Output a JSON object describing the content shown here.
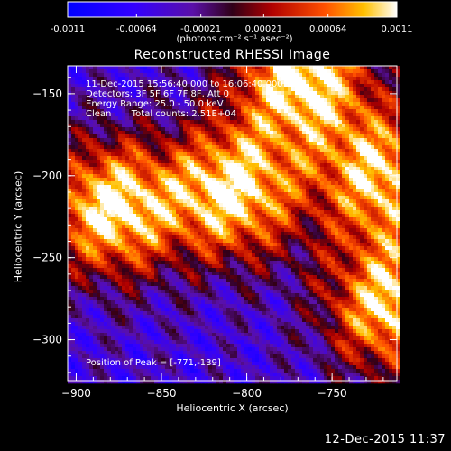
{
  "chart_data": {
    "type": "heatmap",
    "title": "Reconstructed RHESSI Image",
    "xlabel": "Heliocentric X (arcsec)",
    "ylabel": "Heliocentric Y (arcsec)",
    "xlim": [
      -905,
      -712
    ],
    "ylim": [
      -325,
      -133
    ],
    "x_ticks": [
      -900,
      -850,
      -800,
      -750
    ],
    "y_ticks": [
      -150,
      -200,
      -250,
      -300
    ],
    "colorbar": {
      "vmin": -0.0011,
      "vmax": 0.0011,
      "tick_values": [
        -0.0011,
        -0.00064,
        -0.00021,
        0.00021,
        0.00064,
        0.0011
      ],
      "tick_labels": [
        "-0.0011",
        "-0.00064",
        "-0.00021",
        "0.00021",
        "0.00064",
        "0.0011"
      ],
      "units_text": "(photons cm⁻² s⁻¹ asec⁻²)"
    },
    "annotations": {
      "time_range": "11-Dec-2015 15:56:40.000 to 16:06:40.000",
      "detectors": "Detectors: 3F 5F 6F 7F 8F, Att 0",
      "energy_range": "Energy Range: 25.0 - 50.0 keV",
      "clean": "Clean",
      "total_counts": "Total counts: 2.51E+04",
      "peak": "Position of Peak = [-771,-139]"
    },
    "peak_position": [
      -771,
      -139
    ],
    "sources": [
      {
        "x": -880,
        "y": -220,
        "intensity": 0.0011
      },
      {
        "x": -808,
        "y": -210,
        "intensity": 0.00105
      },
      {
        "x": -720,
        "y": -200,
        "intensity": 0.0009
      },
      {
        "x": -715,
        "y": -280,
        "intensity": 0.001
      },
      {
        "x": -768,
        "y": -139,
        "intensity": 0.0011
      }
    ],
    "grid": false
  },
  "footer": {
    "timestamp": "12-Dec-2015 11:37"
  },
  "colors": {
    "background": "#000000",
    "foreground": "#ffffff"
  }
}
